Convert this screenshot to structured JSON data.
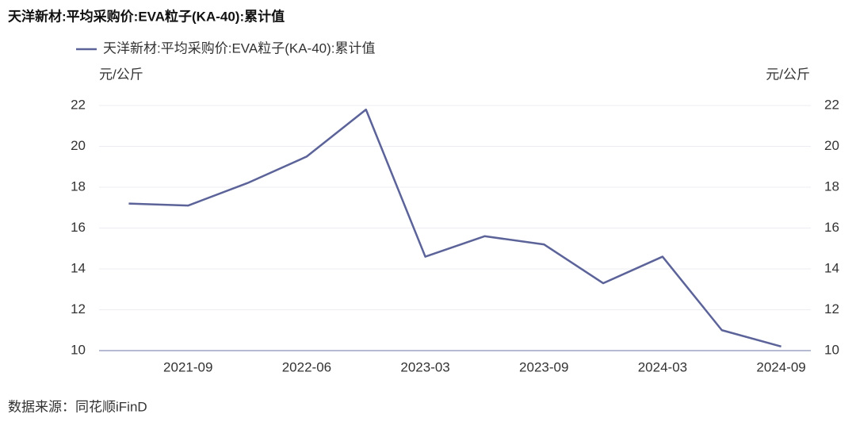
{
  "chart_data": {
    "type": "line",
    "title": "天洋新材:平均采购价:EVA粒子(KA-40):累计值",
    "y_unit": "元/公斤",
    "y2_unit": "元/公斤",
    "source": "数据来源：同花顺iFinD",
    "categories": [
      null,
      "2021-09",
      null,
      "2022-06",
      null,
      "2023-03",
      null,
      "2023-09",
      null,
      "2024-03",
      null,
      "2024-09"
    ],
    "series": [
      {
        "name": "天洋新材:平均采购价:EVA粒子(KA-40):累计值",
        "color": "#5b6399",
        "values": [
          17.2,
          17.1,
          18.2,
          19.5,
          21.8,
          14.6,
          15.6,
          15.2,
          13.3,
          14.6,
          11.0,
          10.2
        ]
      }
    ],
    "ylim": [
      10,
      22
    ],
    "yticks": [
      10,
      12,
      14,
      16,
      18,
      20,
      22
    ],
    "y2lim": [
      10,
      22
    ],
    "y2ticks": [
      10,
      12,
      14,
      16,
      18,
      20,
      22
    ],
    "grid": true
  }
}
